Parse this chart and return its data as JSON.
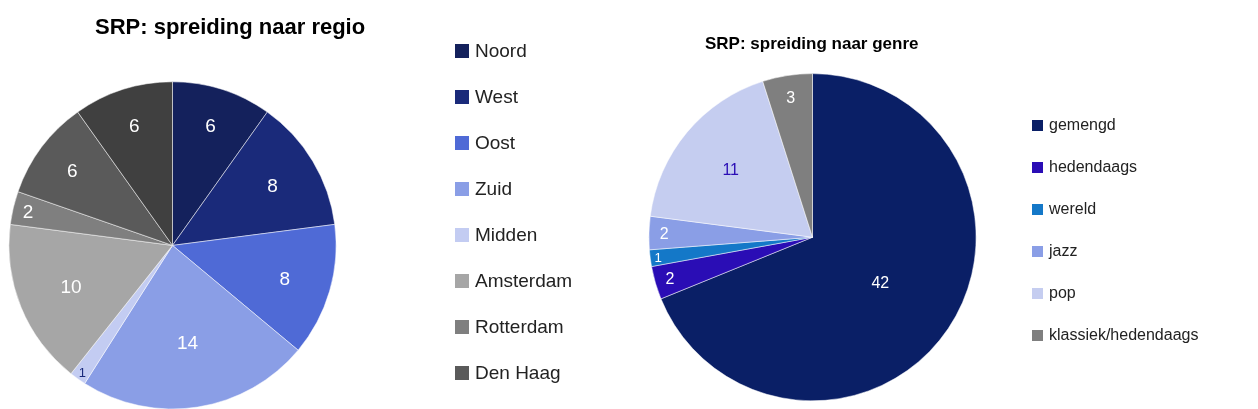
{
  "chart_data": [
    {
      "type": "pie",
      "title": "SRP: spreiding naar regio",
      "categories": [
        "Noord",
        "West",
        "Oost",
        "Zuid",
        "Midden",
        "Amsterdam",
        "Rotterdam",
        "Den Haag",
        null
      ],
      "values": [
        6,
        8,
        8,
        14,
        1,
        10,
        2,
        6,
        6
      ],
      "colors": [
        "#14215c",
        "#1a2a7a",
        "#4f6ad6",
        "#8a9ee6",
        "#c3ccf2",
        "#a6a6a6",
        "#7f7f7f",
        "#5a5a5a",
        "#404040"
      ],
      "data_labels": true,
      "legend": "right"
    },
    {
      "type": "pie",
      "title": "SRP: spreiding naar genre",
      "categories": [
        "gemengd",
        "hedendaags",
        "wereld",
        "jazz",
        "pop",
        "klassiek/hedendaags"
      ],
      "values": [
        42,
        2,
        1,
        2,
        11,
        3
      ],
      "colors": [
        "#0a1f66",
        "#2a0db5",
        "#1478c8",
        "#8a9ee6",
        "#c5cdf0",
        "#7f7f7f"
      ],
      "data_labels": true,
      "legend": "right"
    }
  ]
}
